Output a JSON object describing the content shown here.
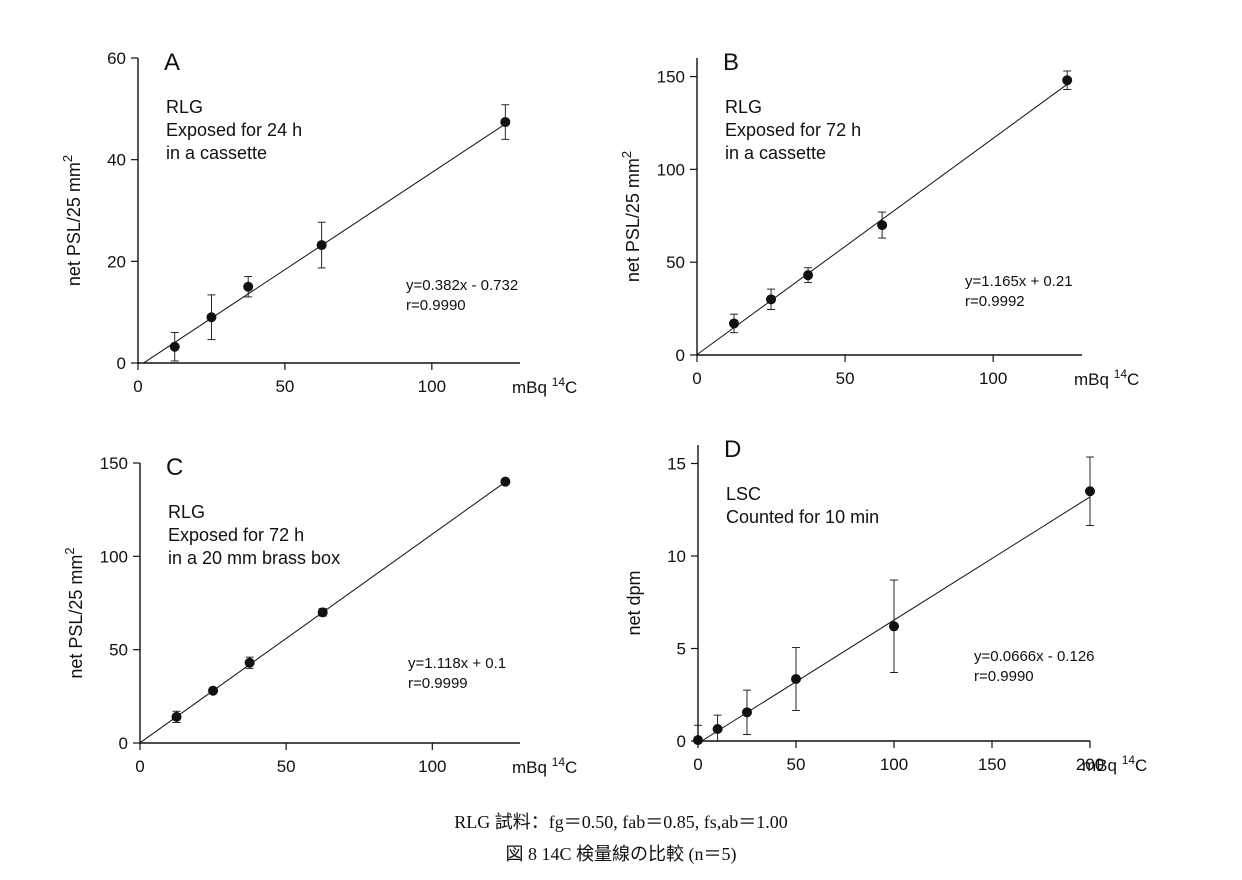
{
  "chart_data": [
    {
      "type": "scatter",
      "panel_label": "A",
      "annotation": [
        "RLG",
        "Exposed for 24 h",
        "in a cassette"
      ],
      "ylabel": "net PSL/25 mm",
      "ylabel_superscript": "2",
      "xlabel": "mBq",
      "xlabel_superscript": "14",
      "xlabel_suffix": "C",
      "xlim": [
        0,
        130
      ],
      "ylim": [
        0,
        60
      ],
      "xticks": [
        0,
        50,
        100
      ],
      "yticks": [
        0,
        20,
        40,
        60
      ],
      "series": [
        {
          "x": [
            12.5,
            25,
            37.5,
            62.5,
            125
          ],
          "y": [
            3.2,
            9.0,
            15.0,
            23.2,
            47.4
          ],
          "err": [
            2.8,
            4.4,
            2.0,
            4.5,
            3.4
          ]
        }
      ],
      "fit": {
        "slope": 0.382,
        "intercept": -0.732,
        "x_range": [
          2,
          125
        ]
      },
      "equation": [
        "y=0.382x - 0.732",
        "r=0.9990"
      ],
      "grid": false
    },
    {
      "type": "scatter",
      "panel_label": "B",
      "annotation": [
        "RLG",
        "Exposed for 72 h",
        "in a cassette"
      ],
      "ylabel": "net PSL/25 mm",
      "ylabel_superscript": "2",
      "xlabel": "mBq",
      "xlabel_superscript": "14",
      "xlabel_suffix": "C",
      "xlim": [
        0,
        130
      ],
      "ylim": [
        0,
        160
      ],
      "xticks": [
        0,
        50,
        100
      ],
      "yticks": [
        0,
        50,
        100,
        150
      ],
      "series": [
        {
          "x": [
            12.5,
            25,
            37.5,
            62.5,
            125
          ],
          "y": [
            17,
            30,
            43,
            70,
            148
          ],
          "err": [
            5,
            5.5,
            4,
            7,
            5
          ]
        }
      ],
      "fit": {
        "slope": 1.165,
        "intercept": 0.21,
        "x_range": [
          0,
          125
        ]
      },
      "equation": [
        "y=1.165x + 0.21",
        "r=0.9992"
      ],
      "grid": false
    },
    {
      "type": "scatter",
      "panel_label": "C",
      "annotation": [
        "RLG",
        "Exposed for 72 h",
        "in a 20 mm brass box"
      ],
      "ylabel": "net PSL/25 mm",
      "ylabel_superscript": "2",
      "xlabel": "mBq",
      "xlabel_superscript": "14",
      "xlabel_suffix": "C",
      "xlim": [
        0,
        130
      ],
      "ylim": [
        0,
        150
      ],
      "xticks": [
        0,
        50,
        100
      ],
      "yticks": [
        0,
        50,
        100,
        150
      ],
      "series": [
        {
          "x": [
            12.5,
            25,
            37.5,
            62.5,
            125
          ],
          "y": [
            14,
            28,
            43,
            70,
            140
          ],
          "err": [
            3,
            1.5,
            3,
            2,
            1
          ]
        }
      ],
      "fit": {
        "slope": 1.118,
        "intercept": 0.1,
        "x_range": [
          0,
          125
        ]
      },
      "equation": [
        "y=1.118x + 0.1",
        "r=0.9999"
      ],
      "grid": false
    },
    {
      "type": "scatter",
      "panel_label": "D",
      "annotation": [
        "LSC",
        "Counted for 10 min"
      ],
      "ylabel": "net dpm",
      "ylabel_superscript": "",
      "xlabel": "mBq",
      "xlabel_superscript": "14",
      "xlabel_suffix": "C",
      "xlim": [
        0,
        200
      ],
      "ylim": [
        0,
        16
      ],
      "xticks": [
        0,
        50,
        100,
        150,
        200
      ],
      "yticks": [
        0,
        5,
        10,
        15
      ],
      "series": [
        {
          "x": [
            0,
            10,
            25,
            50,
            100,
            200
          ],
          "y": [
            0.05,
            0.65,
            1.55,
            3.35,
            6.2,
            13.5
          ],
          "err": [
            0.8,
            0.75,
            1.2,
            1.7,
            2.5,
            1.85
          ]
        }
      ],
      "fit": {
        "slope": 0.0666,
        "intercept": -0.126,
        "x_range": [
          2,
          200
        ]
      },
      "equation": [
        "y=0.0666x - 0.126",
        "r=0.9990"
      ],
      "grid": false
    }
  ],
  "caption": {
    "line1": "RLG 試料：fg＝0.50, fab＝0.85, fs,ab＝1.00",
    "line2": "図 8   14C 検量線の比較 (n＝5)"
  }
}
